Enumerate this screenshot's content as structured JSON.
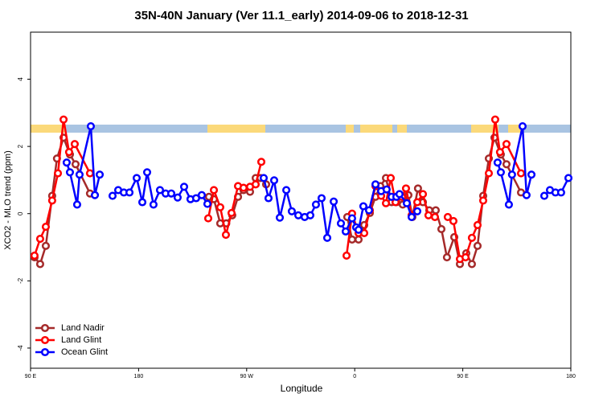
{
  "chart_data": {
    "type": "line",
    "title": "35N-40N January (Ver 11.1_early)   2014-09-06 to 2018-12-31",
    "x_label": "Longitude",
    "y_label": "XCO2 - MLO trend (ppm)",
    "xlim": [
      90,
      540
    ],
    "xticks": [
      {
        "value": 90,
        "label": "90 E"
      },
      {
        "value": 180,
        "label": "180"
      },
      {
        "value": 270,
        "label": "90 W"
      },
      {
        "value": 360,
        "label": "0"
      },
      {
        "value": 450,
        "label": "90 E"
      },
      {
        "value": 540,
        "label": "180"
      }
    ],
    "ylim": [
      -4.6,
      5.4
    ],
    "yticks": [
      -4,
      -2,
      0,
      2,
      4
    ],
    "legend": "bottom-left",
    "series": [
      {
        "name": "Land Nadir",
        "color": "#a52a2a",
        "x": [
          93.3,
          98,
          102.7,
          108,
          112,
          117.5,
          122.8,
          127.5,
          139.5,
          null,
          238.6,
          242.7,
          248,
          253,
          258,
          262.8,
          267.4,
          272.8,
          277.5,
          281.5,
          286.2,
          null,
          353.8,
          357.8,
          363.2,
          367.9,
          372.6,
          377.3,
          381.3,
          386,
          390.7,
          394.7,
          400,
          404.7,
          408,
          412.7,
          416.8,
          422.1,
          427.5,
          432.2,
          436.8,
          442.9,
          447.6,
          452.9,
          457.6,
          462.3,
          467,
          471.7,
          476.4,
          481.7,
          486.4,
          498.5
        ],
        "values": [
          -1.3,
          -1.5,
          -0.96,
          0.53,
          1.64,
          2.26,
          1.76,
          1.47,
          0.6,
          null,
          0.5,
          0.43,
          -0.29,
          -0.29,
          -0.05,
          0.5,
          0.7,
          0.65,
          1.06,
          1.06,
          0.87,
          null,
          -0.1,
          -0.77,
          -0.77,
          -0.34,
          0.02,
          0.5,
          0.82,
          1.06,
          0.34,
          0.34,
          0.27,
          0.55,
          -0.1,
          0.75,
          0.34,
          0.1,
          0.1,
          -0.46,
          -1.3,
          -0.7,
          -1.5,
          -1.18,
          -1.5,
          -0.96,
          0.53,
          1.64,
          2.26,
          1.76,
          1.47,
          0.63
        ]
      },
      {
        "name": "Land Glint",
        "color": "#ff0000",
        "x": [
          93.3,
          98,
          102.7,
          108,
          112.8,
          117.5,
          122.1,
          126.8,
          139.5,
          null,
          238,
          242.7,
          248,
          252.7,
          257.4,
          262.8,
          267.4,
          272.8,
          277.5,
          282.2,
          null,
          353.2,
          357.8,
          363.2,
          367.9,
          372.6,
          377.3,
          382,
          386,
          390,
          394,
          399.4,
          402.7,
          407.4,
          412.1,
          416.8,
          421.4,
          426.8,
          null,
          437.5,
          442.2,
          447.6,
          452.3,
          457.6,
          462.3,
          467,
          471.7,
          477,
          481,
          486.4,
          498.5
        ],
        "values": [
          -1.25,
          -0.75,
          -0.39,
          0.39,
          1.2,
          2.8,
          1.83,
          2.07,
          1.2,
          null,
          -0.14,
          0.7,
          0.19,
          -0.63,
          0.02,
          0.82,
          0.77,
          0.8,
          0.87,
          1.54,
          null,
          -1.25,
          0,
          -0.58,
          -0.58,
          0.1,
          0.82,
          0.53,
          0.31,
          1.06,
          0.34,
          0.5,
          0.75,
          -0.05,
          0.34,
          0.58,
          -0.05,
          -0.1,
          null,
          -0.1,
          -0.22,
          -1.35,
          -1.3,
          -0.72,
          -0.34,
          0.39,
          1.2,
          2.8,
          1.83,
          2.07,
          1.2
        ]
      },
      {
        "name": "Ocean Glint",
        "color": "#0000ff",
        "x": [
          120.1,
          122.8,
          128.8,
          130.8,
          140.2,
          143.6,
          147.6,
          null,
          158.3,
          163,
          167.7,
          172.4,
          178.4,
          183.1,
          187.1,
          192.4,
          197.8,
          202.5,
          207.2,
          212.5,
          217.9,
          223.2,
          227.9,
          232.6,
          237.3,
          null,
          284.2,
          288.2,
          292.9,
          297.6,
          303,
          307.6,
          313,
          318.3,
          323,
          327.7,
          332.4,
          337.1,
          342.5,
          348.5,
          352.5,
          357.8,
          361.2,
          363.2,
          367.2,
          371.9,
          377.3,
          382,
          386.6,
          390.7,
          394.7,
          397.3,
          403.4,
          407.4,
          412.1,
          null,
          479,
          481.7,
          488.4,
          491,
          499.8,
          503.1,
          507.2,
          null,
          517.9,
          522.6,
          527.2,
          531.9,
          538
        ],
        "values": [
          1.52,
          1.23,
          0.27,
          1.16,
          2.6,
          0.55,
          1.16,
          null,
          0.53,
          0.7,
          0.63,
          0.63,
          1.06,
          0.34,
          1.23,
          0.27,
          0.7,
          0.6,
          0.6,
          0.48,
          0.8,
          0.43,
          0.46,
          0.55,
          0.29,
          null,
          1.06,
          0.46,
          0.99,
          -0.12,
          0.7,
          0.07,
          -0.05,
          -0.1,
          -0.05,
          0.27,
          0.46,
          -0.72,
          0.36,
          -0.29,
          -0.53,
          -0.14,
          -0.41,
          -0.48,
          0.22,
          0.1,
          0.87,
          0.67,
          0.72,
          0.5,
          0.5,
          0.58,
          0.31,
          -0.1,
          0.07,
          null,
          1.52,
          1.23,
          0.27,
          1.16,
          2.6,
          0.55,
          1.16,
          null,
          0.53,
          0.7,
          0.63,
          0.63,
          1.06
        ]
      }
    ]
  }
}
